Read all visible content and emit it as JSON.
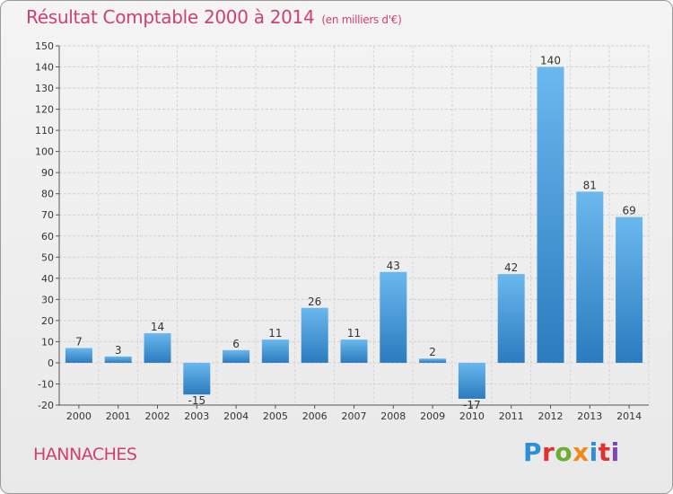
{
  "title": "Résultat Comptable 2000 à 2014",
  "subtitle": "(en milliers d'€)",
  "commune": "HANNACHES",
  "brand": "Proxiti",
  "brand_colors": [
    "#2f8fd6",
    "#e0322e",
    "#6cae2f",
    "#f08a1c",
    "#2f8fd6",
    "#e0322e",
    "#7a48b3"
  ],
  "colors": {
    "bar_top": "#6ab8ee",
    "bar_bottom": "#2b7bbf",
    "accent": "#d1416e"
  },
  "chart_data": {
    "type": "bar",
    "title": "Résultat Comptable 2000 à 2014",
    "ylabel": "en milliers d'€",
    "categories": [
      "2000",
      "2001",
      "2002",
      "2003",
      "2004",
      "2005",
      "2006",
      "2007",
      "2008",
      "2009",
      "2010",
      "2011",
      "2012",
      "2013",
      "2014"
    ],
    "values": [
      7,
      3,
      14,
      -15,
      6,
      11,
      26,
      11,
      43,
      2,
      -17,
      42,
      140,
      81,
      69
    ],
    "ylim": [
      -20,
      150
    ],
    "yticks": [
      -20,
      -10,
      0,
      10,
      20,
      30,
      40,
      50,
      60,
      70,
      80,
      90,
      100,
      110,
      120,
      130,
      140,
      150
    ],
    "grid": true
  }
}
